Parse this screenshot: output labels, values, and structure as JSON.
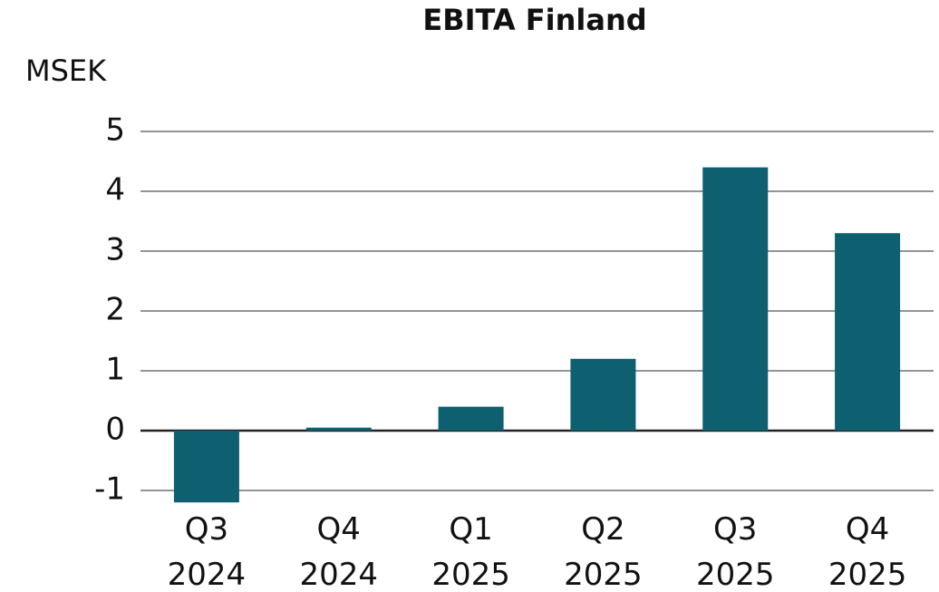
{
  "chart_data": {
    "type": "bar",
    "title": "EBITA Finland",
    "y_label": "MSEK",
    "categories": [
      "Q3 2024",
      "Q4 2024",
      "Q1 2025",
      "Q2 2025",
      "Q3 2025",
      "Q4 2025"
    ],
    "values": [
      -1.2,
      0.05,
      0.4,
      1.2,
      4.4,
      3.3
    ],
    "color": "#0e6070",
    "ylim": [
      -1,
      5
    ],
    "yticks": [
      -1,
      0,
      1,
      2,
      3,
      4,
      5
    ],
    "grid": true
  }
}
